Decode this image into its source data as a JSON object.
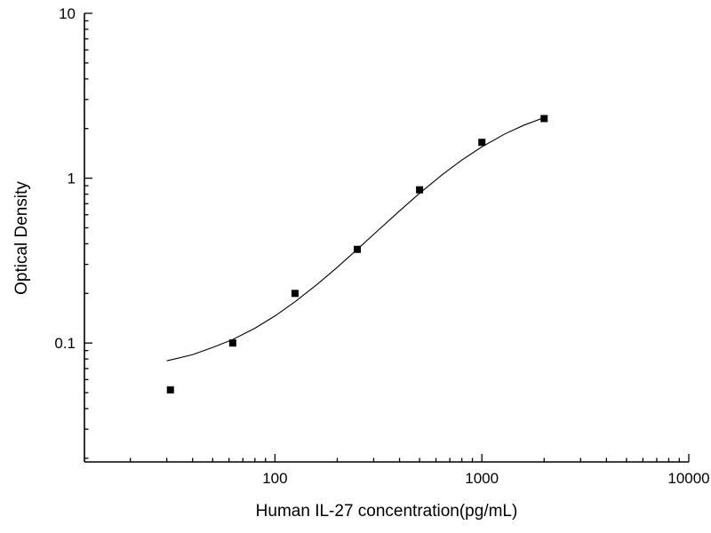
{
  "chart_data": {
    "type": "scatter",
    "title": "",
    "xlabel": "Human IL-27 concentration(pg/mL)",
    "ylabel": "Optical Density",
    "x_scale": "log",
    "y_scale": "log",
    "xlim": [
      12,
      10000
    ],
    "ylim": [
      0.019,
      10
    ],
    "grid": false,
    "legend": false,
    "background": "#ffffff",
    "line_color": "#000000",
    "marker": {
      "shape": "square",
      "color": "#000000",
      "size": 8
    },
    "x_ticks": [
      {
        "value": 100,
        "label": "100"
      },
      {
        "value": 1000,
        "label": "1000"
      },
      {
        "value": 10000,
        "label": "10000"
      }
    ],
    "y_ticks": [
      {
        "value": 0.1,
        "label": "0.1"
      },
      {
        "value": 1,
        "label": "1"
      },
      {
        "value": 10,
        "label": "10"
      }
    ],
    "points": [
      {
        "x": 31.25,
        "y": 0.052
      },
      {
        "x": 62.5,
        "y": 0.1
      },
      {
        "x": 125,
        "y": 0.2
      },
      {
        "x": 250,
        "y": 0.37
      },
      {
        "x": 500,
        "y": 0.85
      },
      {
        "x": 1000,
        "y": 1.65
      },
      {
        "x": 2000,
        "y": 2.3
      }
    ],
    "fit_curve": [
      {
        "x": 30,
        "y": 0.078
      },
      {
        "x": 40,
        "y": 0.085
      },
      {
        "x": 50,
        "y": 0.094
      },
      {
        "x": 62.5,
        "y": 0.105
      },
      {
        "x": 80,
        "y": 0.123
      },
      {
        "x": 100,
        "y": 0.146
      },
      {
        "x": 125,
        "y": 0.178
      },
      {
        "x": 160,
        "y": 0.227
      },
      {
        "x": 200,
        "y": 0.288
      },
      {
        "x": 250,
        "y": 0.37
      },
      {
        "x": 320,
        "y": 0.491
      },
      {
        "x": 400,
        "y": 0.633
      },
      {
        "x": 500,
        "y": 0.81
      },
      {
        "x": 640,
        "y": 1.045
      },
      {
        "x": 800,
        "y": 1.288
      },
      {
        "x": 1000,
        "y": 1.55
      },
      {
        "x": 1300,
        "y": 1.863
      },
      {
        "x": 1600,
        "y": 2.099
      },
      {
        "x": 2000,
        "y": 2.33
      }
    ]
  }
}
